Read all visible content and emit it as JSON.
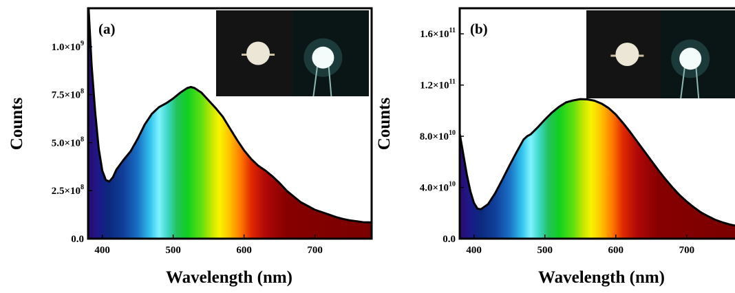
{
  "chart_data": [
    {
      "type": "area",
      "panel_label": "(a)",
      "xlabel": "Wavelength (nm)",
      "ylabel": "Counts",
      "xlim": [
        380,
        780
      ],
      "ylim": [
        0,
        1200000000.0
      ],
      "x_ticks": [
        400,
        500,
        600,
        700
      ],
      "y_ticks": [
        {
          "value": 0,
          "mantissa": "0.0",
          "exp": ""
        },
        {
          "value": 250000000.0,
          "mantissa": "2.5×10",
          "exp": "8"
        },
        {
          "value": 500000000.0,
          "mantissa": "5.0×10",
          "exp": "8"
        },
        {
          "value": 750000000.0,
          "mantissa": "7.5×10",
          "exp": "8"
        },
        {
          "value": 1000000000.0,
          "mantissa": "1.0×10",
          "exp": "9"
        }
      ],
      "fill": "visible-spectrum",
      "inset": "photographs of the LED device, off and on",
      "series": [
        {
          "x": [
            380,
            385,
            390,
            395,
            400,
            405,
            410,
            415,
            420,
            430,
            440,
            450,
            460,
            470,
            480,
            490,
            500,
            510,
            520,
            525,
            530,
            540,
            550,
            560,
            570,
            580,
            590,
            600,
            610,
            620,
            630,
            640,
            650,
            660,
            670,
            680,
            690,
            700,
            710,
            720,
            730,
            740,
            750,
            760,
            770,
            780
          ],
          "y": [
            1250000000.0,
            900000000.0,
            660000000.0,
            470000000.0,
            355000000.0,
            305000000.0,
            298000000.0,
            320000000.0,
            360000000.0,
            410000000.0,
            455000000.0,
            520000000.0,
            595000000.0,
            650000000.0,
            685000000.0,
            705000000.0,
            730000000.0,
            760000000.0,
            785000000.0,
            790000000.0,
            785000000.0,
            760000000.0,
            720000000.0,
            680000000.0,
            635000000.0,
            575000000.0,
            515000000.0,
            460000000.0,
            415000000.0,
            380000000.0,
            355000000.0,
            325000000.0,
            290000000.0,
            250000000.0,
            220000000.0,
            190000000.0,
            170000000.0,
            150000000.0,
            138000000.0,
            125000000.0,
            112000000.0,
            102000000.0,
            95000000.0,
            90000000.0,
            85000000.0,
            85000000.0
          ]
        }
      ]
    },
    {
      "type": "area",
      "panel_label": "(b)",
      "xlabel": "Wavelength (nm)",
      "ylabel": "Counts",
      "xlim": [
        380,
        770
      ],
      "ylim": [
        0,
        180000000000.0
      ],
      "x_ticks": [
        400,
        500,
        600,
        700
      ],
      "y_ticks": [
        {
          "value": 0,
          "mantissa": "0.0",
          "exp": ""
        },
        {
          "value": 40000000000.0,
          "mantissa": "4.0×10",
          "exp": "10"
        },
        {
          "value": 80000000000.0,
          "mantissa": "8.0×10",
          "exp": "10"
        },
        {
          "value": 120000000000.0,
          "mantissa": "1.2×10",
          "exp": "11"
        },
        {
          "value": 160000000000.0,
          "mantissa": "1.6×10",
          "exp": "11"
        }
      ],
      "fill": "visible-spectrum",
      "inset": "photographs of the LED device, off and on",
      "series": [
        {
          "x": [
            380,
            385,
            390,
            395,
            400,
            405,
            410,
            420,
            430,
            440,
            450,
            460,
            470,
            475,
            480,
            490,
            500,
            510,
            520,
            530,
            540,
            550,
            560,
            570,
            580,
            590,
            600,
            610,
            620,
            630,
            640,
            650,
            660,
            670,
            680,
            690,
            700,
            710,
            720,
            730,
            740,
            750,
            760,
            770
          ],
          "y": [
            82000000000.0,
            66000000000.0,
            50000000000.0,
            37000000000.0,
            28000000000.0,
            23500000000.0,
            23000000000.0,
            27000000000.0,
            35500000000.0,
            46000000000.0,
            57000000000.0,
            67500000000.0,
            77500000000.0,
            80000000000.0,
            81500000000.0,
            87000000000.0,
            93000000000.0,
            98500000000.0,
            103000000000.0,
            106500000000.0,
            108000000000.0,
            109000000000.0,
            108800000000.0,
            107800000000.0,
            105500000000.0,
            102000000000.0,
            97000000000.0,
            90500000000.0,
            83500000000.0,
            76000000000.0,
            68500000000.0,
            61000000000.0,
            53500000000.0,
            46500000000.0,
            40000000000.0,
            34000000000.0,
            29000000000.0,
            24500000000.0,
            20500000000.0,
            17500000000.0,
            14800000000.0,
            12800000000.0,
            11200000000.0,
            10000000000.0
          ]
        }
      ]
    }
  ]
}
